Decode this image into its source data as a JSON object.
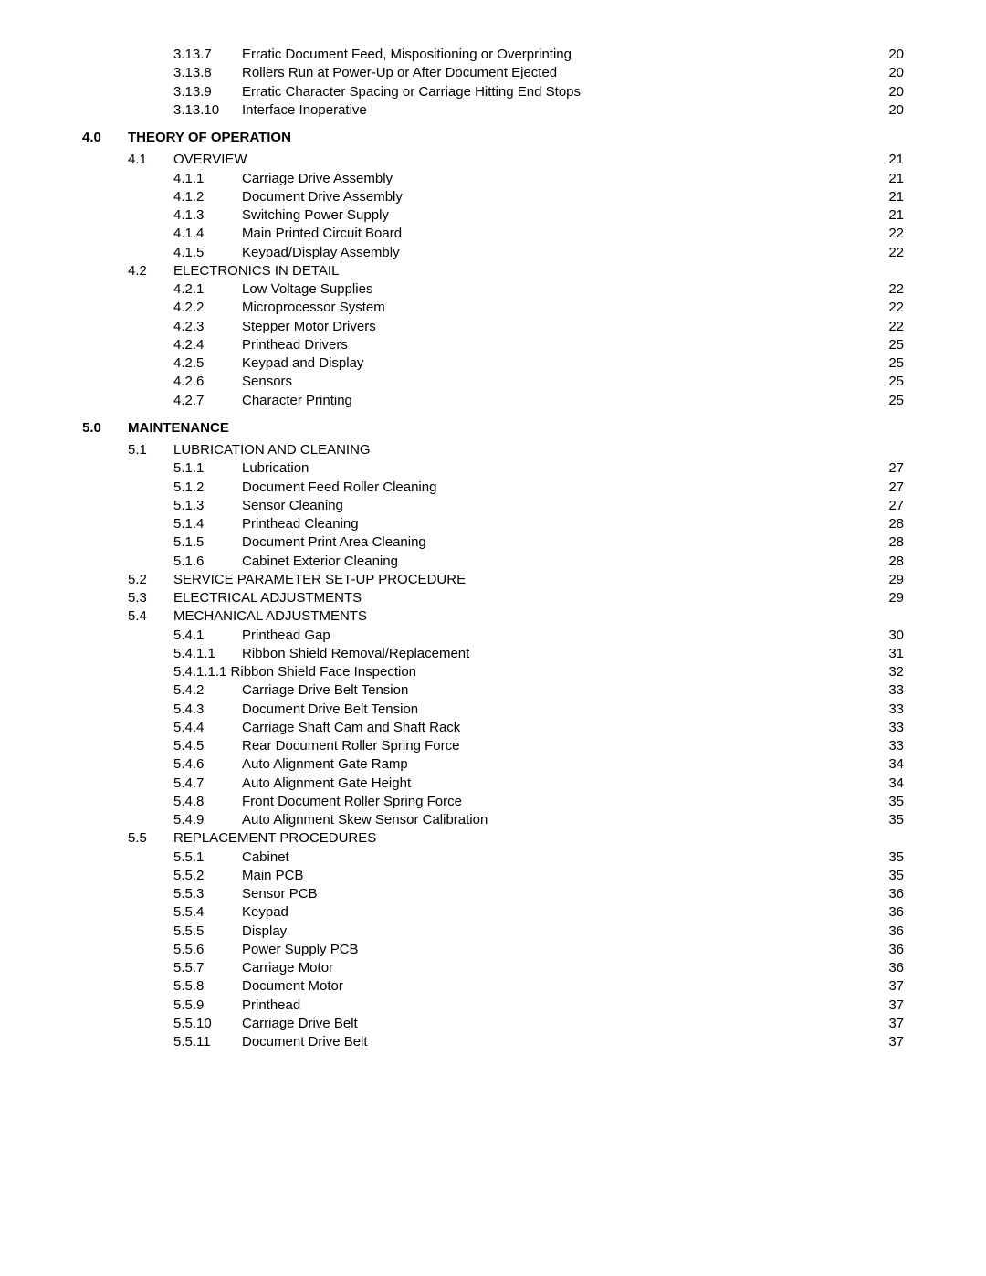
{
  "entries": [
    {
      "level": 3,
      "num": "3.13.7",
      "title": "Erratic Document Feed, Mispositioning or Overprinting",
      "page": "20"
    },
    {
      "level": 3,
      "num": "3.13.8",
      "title": "Rollers Run at Power-Up or After Document Ejected",
      "page": "20"
    },
    {
      "level": 3,
      "num": "3.13.9",
      "title": "Erratic Character Spacing or Carriage Hitting End Stops",
      "page": "20"
    },
    {
      "level": 3,
      "num": "3.13.10",
      "title": "Interface Inoperative",
      "page": "20"
    },
    {
      "type": "spacer"
    },
    {
      "level": 1,
      "num": "4.0",
      "title": "THEORY OF OPERATION",
      "bold": true
    },
    {
      "type": "spacer-sm"
    },
    {
      "level": 2,
      "num": "4.1",
      "title": "OVERVIEW",
      "page": "21"
    },
    {
      "level": 3,
      "num": "4.1.1",
      "title": "Carriage Drive Assembly",
      "page": "21"
    },
    {
      "level": 3,
      "num": "4.1.2",
      "title": "Document Drive Assembly",
      "page": "21"
    },
    {
      "level": 3,
      "num": "4.1.3",
      "title": "Switching Power Supply",
      "page": "21"
    },
    {
      "level": 3,
      "num": "4.1.4",
      "title": "Main Printed Circuit Board",
      "page": "22"
    },
    {
      "level": 3,
      "num": "4.1.5",
      "title": "Keypad/Display Assembly",
      "page": "22"
    },
    {
      "level": 2,
      "num": "4.2",
      "title": "ELECTRONICS IN DETAIL"
    },
    {
      "level": 3,
      "num": "4.2.1",
      "title": "Low Voltage Supplies",
      "page": "22"
    },
    {
      "level": 3,
      "num": "4.2.2",
      "title": "Microprocessor System",
      "page": "22"
    },
    {
      "level": 3,
      "num": "4.2.3",
      "title": "Stepper Motor Drivers",
      "page": "22"
    },
    {
      "level": 3,
      "num": "4.2.4",
      "title": "Printhead Drivers",
      "page": "25"
    },
    {
      "level": 3,
      "num": "4.2.5",
      "title": "Keypad and Display",
      "page": "25"
    },
    {
      "level": 3,
      "num": "4.2.6",
      "title": "Sensors",
      "page": "25"
    },
    {
      "level": 3,
      "num": "4.2.7",
      "title": "Character Printing",
      "page": "25"
    },
    {
      "type": "spacer"
    },
    {
      "level": 1,
      "num": "5.0",
      "title": "MAINTENANCE",
      "bold": true
    },
    {
      "type": "spacer-sm"
    },
    {
      "level": 2,
      "num": "5.1",
      "title": "LUBRICATION AND CLEANING"
    },
    {
      "level": 3,
      "num": "5.1.1",
      "title": "Lubrication",
      "page": "27"
    },
    {
      "level": 3,
      "num": "5.1.2",
      "title": "Document Feed Roller Cleaning",
      "page": "27"
    },
    {
      "level": 3,
      "num": "5.1.3",
      "title": "Sensor Cleaning",
      "page": "27"
    },
    {
      "level": 3,
      "num": "5.1.4",
      "title": "Printhead Cleaning",
      "page": "28"
    },
    {
      "level": 3,
      "num": "5.1.5",
      "title": "Document Print Area Cleaning",
      "page": "28"
    },
    {
      "level": 3,
      "num": "5.1.6",
      "title": "Cabinet Exterior Cleaning",
      "page": "28"
    },
    {
      "level": 2,
      "num": "5.2",
      "title": "SERVICE PARAMETER SET-UP PROCEDURE",
      "page": "29"
    },
    {
      "level": 2,
      "num": "5.3",
      "title": "ELECTRICAL ADJUSTMENTS",
      "page": "29"
    },
    {
      "level": 2,
      "num": "5.4",
      "title": "MECHANICAL ADJUSTMENTS"
    },
    {
      "level": 3,
      "num": "5.4.1",
      "title": "Printhead Gap",
      "page": "30"
    },
    {
      "level": 3,
      "num": "5.4.1.1",
      "title": "Ribbon Shield Removal/Replacement",
      "page": "31"
    },
    {
      "level": 3,
      "num": "5.4.1.1.1",
      "title": "Ribbon Shield Face Inspection",
      "page": "32",
      "noGap": true
    },
    {
      "level": 3,
      "num": "5.4.2",
      "title": "Carriage Drive Belt Tension",
      "page": "33"
    },
    {
      "level": 3,
      "num": "5.4.3",
      "title": "Document Drive Belt Tension",
      "page": "33"
    },
    {
      "level": 3,
      "num": "5.4.4",
      "title": "Carriage Shaft Cam and Shaft Rack",
      "page": "33"
    },
    {
      "level": 3,
      "num": "5.4.5",
      "title": "Rear Document Roller Spring Force",
      "page": "33"
    },
    {
      "level": 3,
      "num": "5.4.6",
      "title": "Auto Alignment Gate Ramp",
      "page": "34"
    },
    {
      "level": 3,
      "num": "5.4.7",
      "title": "Auto Alignment Gate Height",
      "page": "34"
    },
    {
      "level": 3,
      "num": "5.4.8",
      "title": "Front Document Roller Spring Force",
      "page": "35"
    },
    {
      "level": 3,
      "num": "5.4.9",
      "title": "Auto Alignment Skew Sensor Calibration",
      "page": "35"
    },
    {
      "level": 2,
      "num": "5.5",
      "title": "REPLACEMENT PROCEDURES"
    },
    {
      "level": 3,
      "num": "5.5.1",
      "title": "Cabinet",
      "page": "35"
    },
    {
      "level": 3,
      "num": "5.5.2",
      "title": "Main PCB",
      "page": "35"
    },
    {
      "level": 3,
      "num": "5.5.3",
      "title": "Sensor PCB",
      "page": "36"
    },
    {
      "level": 3,
      "num": "5.5.4",
      "title": "Keypad",
      "page": "36"
    },
    {
      "level": 3,
      "num": "5.5.5",
      "title": "Display",
      "page": "36"
    },
    {
      "level": 3,
      "num": "5.5.6",
      "title": "Power Supply PCB",
      "page": "36"
    },
    {
      "level": 3,
      "num": "5.5.7",
      "title": "Carriage Motor",
      "page": "36"
    },
    {
      "level": 3,
      "num": "5.5.8",
      "title": "Document Motor",
      "page": "37"
    },
    {
      "level": 3,
      "num": "5.5.9",
      "title": "Printhead",
      "page": "37"
    },
    {
      "level": 3,
      "num": "5.5.10",
      "title": "Carriage Drive Belt",
      "page": "37"
    },
    {
      "level": 3,
      "num": "5.5.11",
      "title": "Document Drive Belt",
      "page": "37"
    }
  ]
}
